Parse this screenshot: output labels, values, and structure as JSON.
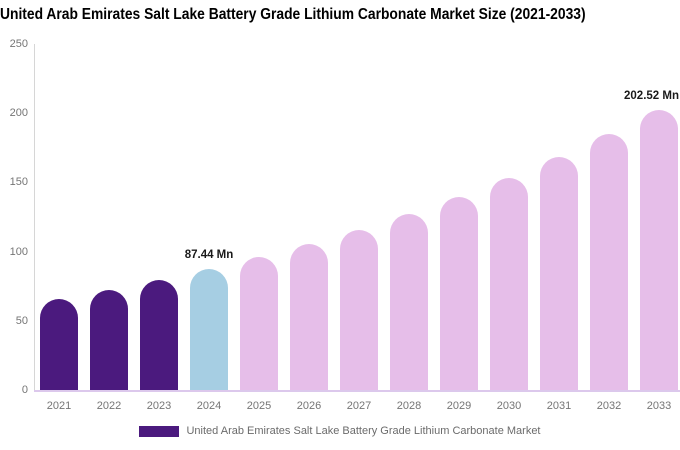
{
  "title": "United Arab Emirates Salt Lake Battery Grade Lithium Carbonate Market Size (2021-2033)",
  "chart_data": {
    "type": "bar",
    "title": "United Arab Emirates Salt Lake Battery Grade Lithium Carbonate Market Size (2021-2033)",
    "categories": [
      "2021",
      "2022",
      "2023",
      "2024",
      "2025",
      "2026",
      "2027",
      "2028",
      "2029",
      "2030",
      "2031",
      "2032",
      "2033"
    ],
    "values": [
      66,
      72.5,
      79.6,
      87.44,
      96,
      105.4,
      115.7,
      127.1,
      139.5,
      153.2,
      168.2,
      184.7,
      202.52
    ],
    "unit": "Mn",
    "ylim": [
      0,
      250
    ],
    "yticks": [
      0,
      50,
      100,
      150,
      200,
      250
    ],
    "grid": false,
    "legend_position": "bottom",
    "legend_label": "United Arab Emirates Salt Lake Battery Grade Lithium Carbonate Market",
    "bar_colors": [
      "#4b1a7e",
      "#4b1a7e",
      "#4b1a7e",
      "#a6cee3",
      "#e6bee9",
      "#e6bee9",
      "#e6bee9",
      "#e6bee9",
      "#e6bee9",
      "#e6bee9",
      "#e6bee9",
      "#e6bee9",
      "#e6bee9"
    ],
    "annotations": [
      {
        "index": 3,
        "text": "87.44 Mn"
      },
      {
        "index": 12,
        "text": "202.52 Mn"
      }
    ]
  },
  "colors": {
    "historical_bar": "#4b1a7e",
    "current_year_bar": "#a6cee3",
    "forecast_bar": "#e6bee9",
    "legend_swatch": "#4b1a7e",
    "axis_text": "#757575",
    "annotation_text": "#1a1a1a",
    "y_axis_line": "#d6d6d6",
    "x_baseline": "#dcc8ec",
    "title_text": "#000000"
  }
}
